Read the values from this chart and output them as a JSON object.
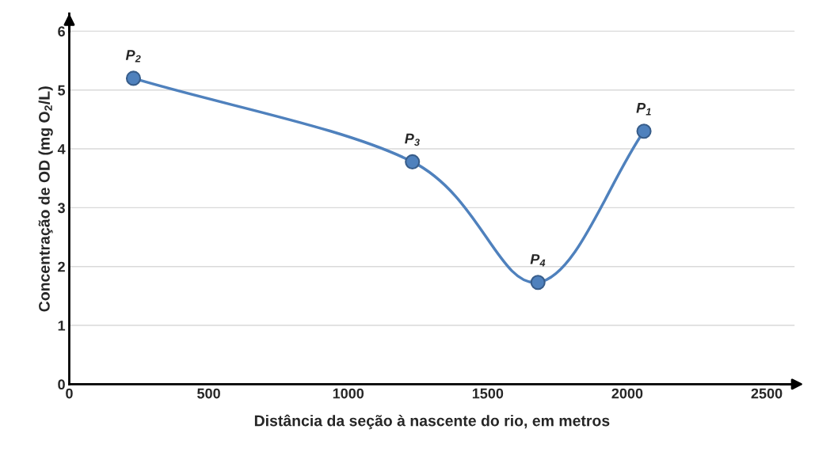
{
  "chart_data": {
    "type": "line",
    "xlabel": "Distância da seção à nascente do rio, em metros",
    "ylabel": "Concentração de OD (mg O$_{2}$/L)",
    "x": [
      230,
      1230,
      1680,
      2060
    ],
    "series": [
      {
        "color": "#4f81bd",
        "values": [
          5.2,
          3.78,
          1.73,
          4.3
        ]
      }
    ],
    "annotations": [
      {
        "text": "P$_{2}$",
        "x": 230,
        "y": 5.2
      },
      {
        "text": "P$_{3}$",
        "x": 1230,
        "y": 3.78
      },
      {
        "text": "P$_{4}$",
        "x": 1680,
        "y": 1.73
      },
      {
        "text": "P$_{1}$",
        "x": 2060,
        "y": 4.3
      }
    ],
    "xlim": [
      0,
      2600
    ],
    "ylim": [
      0,
      6.3
    ],
    "xticks": [
      0,
      500,
      1000,
      1500,
      2000,
      2500
    ],
    "yticks": [
      0,
      1,
      2,
      3,
      4,
      5,
      6
    ],
    "grid": "y",
    "marker": "circle",
    "line_style": "solid",
    "legend": false
  }
}
